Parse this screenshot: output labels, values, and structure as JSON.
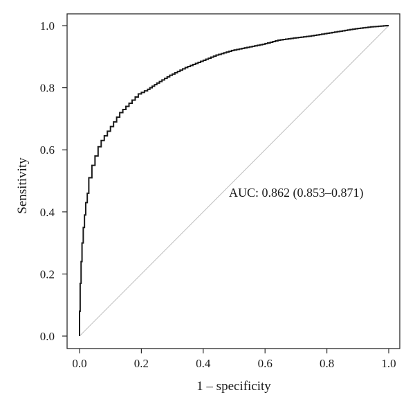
{
  "chart_data": {
    "type": "line",
    "title": "",
    "xlabel": "1 – specificity",
    "ylabel": "Sensitivity",
    "xlim": [
      0,
      1
    ],
    "ylim": [
      0,
      1
    ],
    "x_ticks": [
      "0.0",
      "0.2",
      "0.4",
      "0.6",
      "0.8",
      "1.0"
    ],
    "y_ticks": [
      "0.0",
      "0.2",
      "0.4",
      "0.6",
      "0.8",
      "1.0"
    ],
    "grid": false,
    "legend": "none",
    "annotation": "AUC: 0.862 (0.853–0.871)",
    "series": [
      {
        "style": "step",
        "color": "#1a1a1a",
        "x": [
          0.0,
          0.002,
          0.005,
          0.008,
          0.012,
          0.016,
          0.02,
          0.025,
          0.03,
          0.04,
          0.05,
          0.06,
          0.07,
          0.08,
          0.1,
          0.12,
          0.14,
          0.16,
          0.18,
          0.2,
          0.22,
          0.25,
          0.3,
          0.35,
          0.4,
          0.45,
          0.5,
          0.55,
          0.6,
          0.65,
          0.7,
          0.75,
          0.8,
          0.85,
          0.9,
          0.95,
          1.0
        ],
        "y": [
          0.0,
          0.08,
          0.17,
          0.24,
          0.3,
          0.35,
          0.39,
          0.43,
          0.46,
          0.51,
          0.55,
          0.58,
          0.61,
          0.63,
          0.66,
          0.69,
          0.72,
          0.74,
          0.76,
          0.78,
          0.79,
          0.81,
          0.84,
          0.865,
          0.885,
          0.905,
          0.92,
          0.93,
          0.94,
          0.953,
          0.96,
          0.966,
          0.974,
          0.982,
          0.99,
          0.996,
          1.0
        ]
      },
      {
        "style": "reference",
        "color": "#bdbdbd",
        "x": [
          0,
          1
        ],
        "y": [
          0,
          1
        ]
      }
    ]
  }
}
